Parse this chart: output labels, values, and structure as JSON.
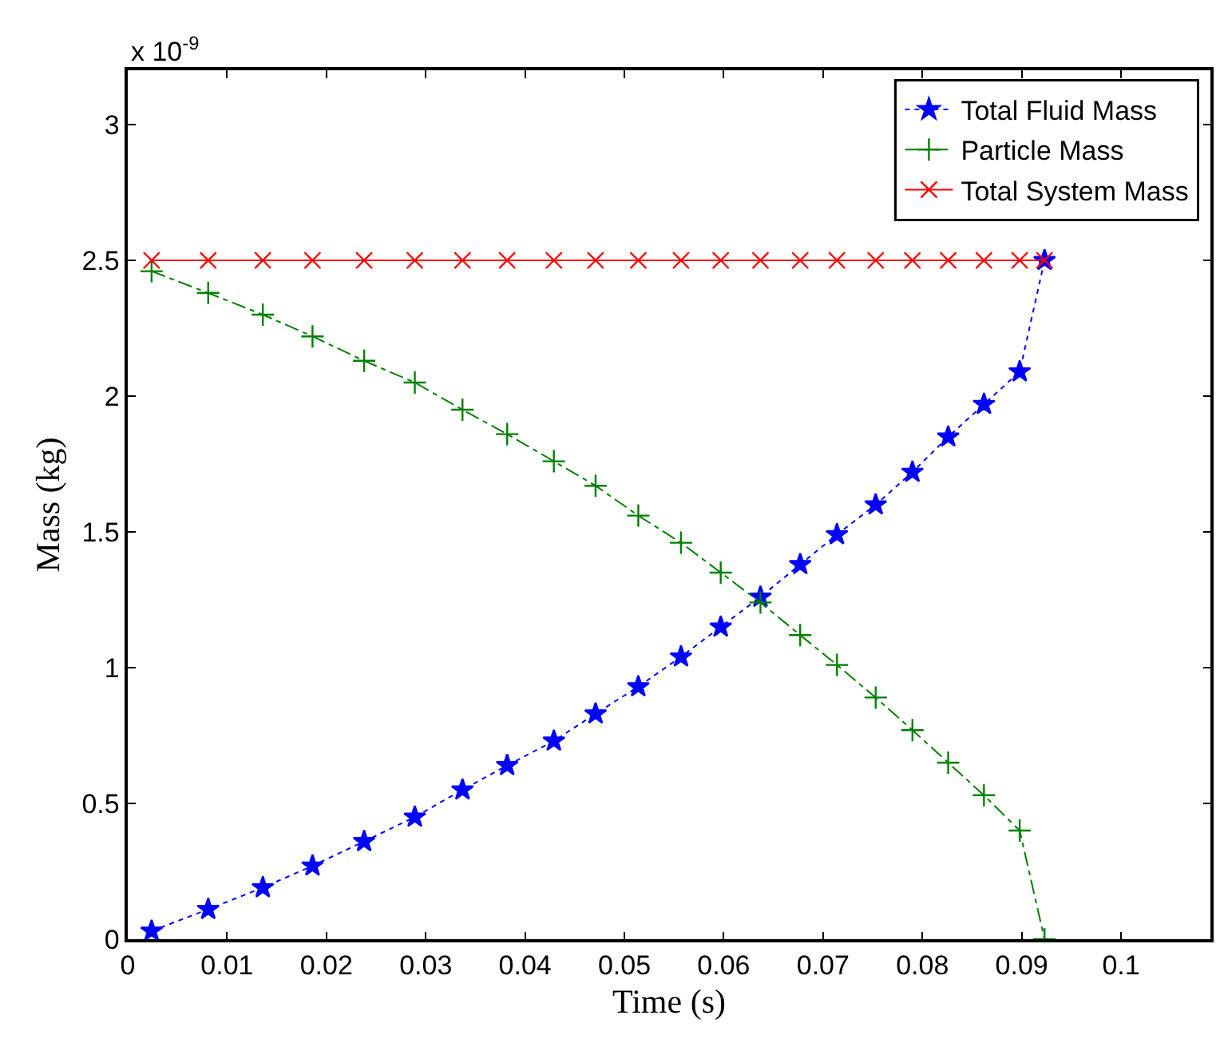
{
  "chart_data": {
    "type": "line",
    "xlabel": "Time (s)",
    "ylabel": "Mass (kg)",
    "annotations": [
      "x 10$^{-9}$"
    ],
    "xlim": [
      0,
      0.109
    ],
    "xticks": [
      0,
      0.01,
      0.02,
      0.03,
      0.04,
      0.05,
      0.06,
      0.07,
      0.08,
      0.09,
      0.1
    ],
    "ylim": [
      0,
      3.2
    ],
    "yticks": [
      0,
      0.5,
      1,
      1.5,
      2,
      2.5,
      3
    ],
    "legend": "top right",
    "series": [
      {
        "name": "Total Fluid Mass",
        "color": "#0000ff",
        "marker": "star",
        "line_style": "dotted",
        "x": [
          0.0024,
          0.0081,
          0.0136,
          0.0186,
          0.0238,
          0.0289,
          0.0337,
          0.0382,
          0.0429,
          0.0471,
          0.0514,
          0.0557,
          0.0597,
          0.0637,
          0.0677,
          0.0714,
          0.0753,
          0.079,
          0.0826,
          0.0862,
          0.0898,
          0.0923
        ],
        "values": [
          0.03,
          0.11,
          0.19,
          0.27,
          0.36,
          0.45,
          0.55,
          0.64,
          0.73,
          0.83,
          0.93,
          1.04,
          1.15,
          1.26,
          1.38,
          1.49,
          1.6,
          1.72,
          1.85,
          1.97,
          2.09,
          2.5
        ]
      },
      {
        "name": "Particle Mass",
        "color": "#008000",
        "marker": "cross",
        "line_style": "dashed",
        "x": [
          0.0024,
          0.0081,
          0.0136,
          0.0186,
          0.0238,
          0.0289,
          0.0337,
          0.0382,
          0.0429,
          0.0471,
          0.0514,
          0.0557,
          0.0597,
          0.0637,
          0.0677,
          0.0714,
          0.0753,
          0.079,
          0.0826,
          0.0862,
          0.0898,
          0.0923
        ],
        "values": [
          2.46,
          2.38,
          2.3,
          2.22,
          2.13,
          2.05,
          1.95,
          1.86,
          1.76,
          1.67,
          1.56,
          1.46,
          1.35,
          1.24,
          1.12,
          1.01,
          0.89,
          0.77,
          0.65,
          0.53,
          0.4,
          0
        ]
      },
      {
        "name": "Total System Mass",
        "color": "#ff0000",
        "marker": "x",
        "line_style": "solid",
        "x": [
          0.0024,
          0.0081,
          0.0136,
          0.0186,
          0.0238,
          0.0289,
          0.0337,
          0.0382,
          0.0429,
          0.0471,
          0.0514,
          0.0557,
          0.0597,
          0.0637,
          0.0677,
          0.0714,
          0.0753,
          0.079,
          0.0826,
          0.0862,
          0.0898,
          0.0923
        ],
        "values": [
          2.5,
          2.5,
          2.5,
          2.5,
          2.5,
          2.5,
          2.5,
          2.5,
          2.5,
          2.5,
          2.5,
          2.5,
          2.5,
          2.5,
          2.5,
          2.5,
          2.5,
          2.5,
          2.5,
          2.5,
          2.5,
          2.5
        ]
      }
    ]
  }
}
